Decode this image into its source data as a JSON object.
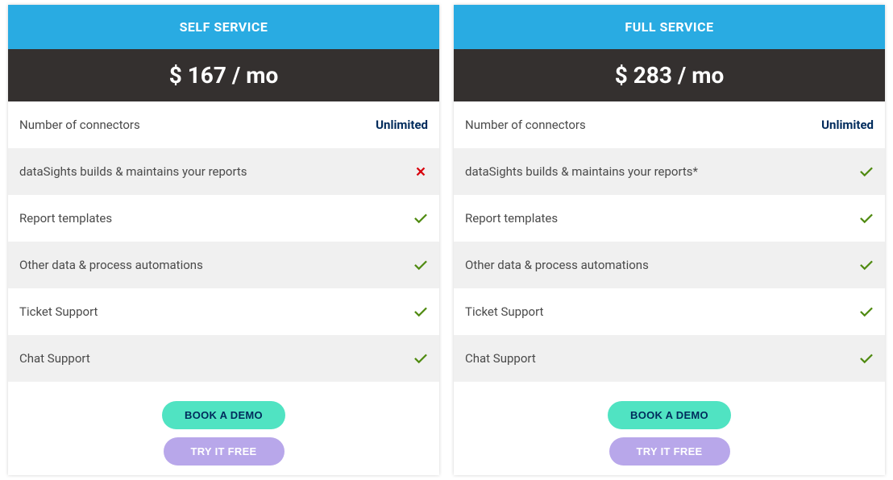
{
  "colors": {
    "header_bg": "#29abe2",
    "header_text": "#ffffff",
    "price_bg": "#34302f",
    "price_text": "#ffffff",
    "row_alt_bg": "#f0f0f0",
    "row_bg": "#ffffff",
    "unlimited_text": "#002b5c",
    "check_color": "#4f8a10",
    "cross_color": "#d8000c",
    "demo_bg": "#50e3c2",
    "demo_text": "#002b5c",
    "try_bg": "#b8a7ea",
    "try_text": "#ffffff"
  },
  "plans": [
    {
      "title": "SELF SERVICE",
      "price": "$ 167 / mo",
      "features": [
        {
          "label": "Number of connectors",
          "type": "text",
          "value": "Unlimited"
        },
        {
          "label": "dataSights builds & maintains your reports",
          "type": "cross"
        },
        {
          "label": "Report templates",
          "type": "check"
        },
        {
          "label": "Other data & process automations",
          "type": "check"
        },
        {
          "label": "Ticket Support",
          "type": "check"
        },
        {
          "label": "Chat Support",
          "type": "check"
        }
      ],
      "buttons": {
        "demo": "BOOK A DEMO",
        "try": "TRY IT FREE"
      }
    },
    {
      "title": "FULL SERVICE",
      "price": "$ 283 / mo",
      "features": [
        {
          "label": "Number of connectors",
          "type": "text",
          "value": "Unlimited"
        },
        {
          "label": "dataSights builds & maintains your reports*",
          "type": "check"
        },
        {
          "label": "Report templates",
          "type": "check"
        },
        {
          "label": "Other data & process automations",
          "type": "check"
        },
        {
          "label": "Ticket Support",
          "type": "check"
        },
        {
          "label": "Chat Support",
          "type": "check"
        }
      ],
      "buttons": {
        "demo": "BOOK A DEMO",
        "try": "TRY IT FREE"
      }
    }
  ]
}
